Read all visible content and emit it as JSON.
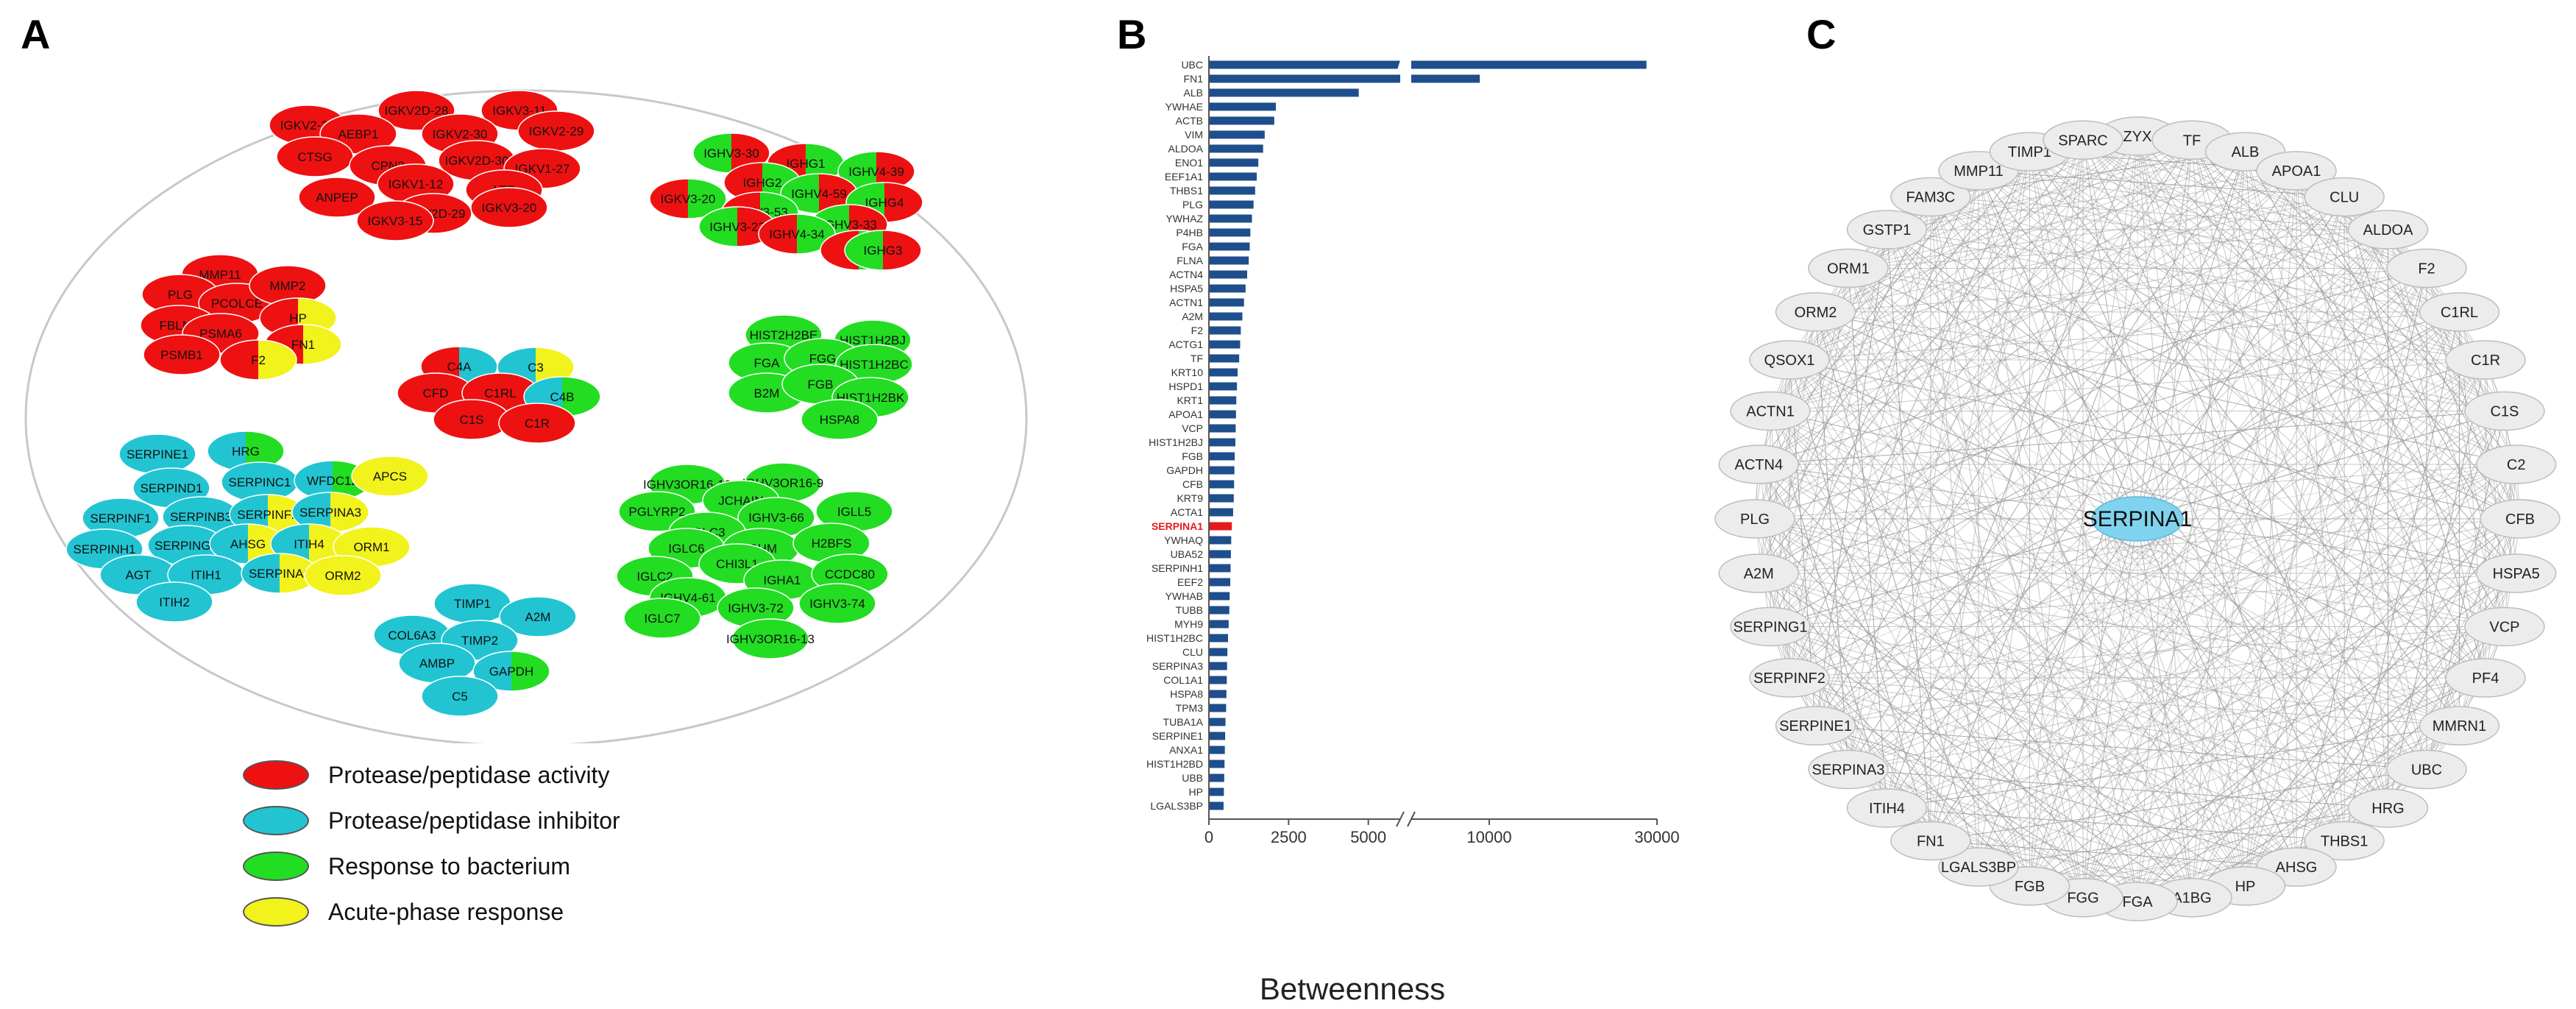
{
  "panel_letters": {
    "a": "A",
    "b": "B",
    "c": "C"
  },
  "colors": {
    "protease": "#ee1111",
    "inhibitor": "#22c4d2",
    "bacterium": "#22dd22",
    "acute": "#f2f21c",
    "bar": "#1e4e8c",
    "highlight": "#e41a1c",
    "node_gray": "#ececec",
    "edge_gray": "#9a9a9a",
    "center_node": "#7fd3ef"
  },
  "legend": [
    {
      "label": "Protease/peptidase activity",
      "color_key": "protease"
    },
    {
      "label": "Protease/peptidase inhibitor",
      "color_key": "inhibitor"
    },
    {
      "label": "Response to bacterium",
      "color_key": "bacterium"
    },
    {
      "label": "Acute-phase response",
      "color_key": "acute"
    }
  ],
  "network_a": {
    "clusters": [
      {
        "nodes": [
          {
            "label": "IGKV2-28",
            "colors": [
              "protease"
            ]
          },
          {
            "label": "IGKV2D-28",
            "colors": [
              "protease"
            ]
          },
          {
            "label": "IGKV3-11",
            "colors": [
              "protease"
            ]
          },
          {
            "label": "AEBP1",
            "colors": [
              "protease"
            ]
          },
          {
            "label": "IGKV2-30",
            "colors": [
              "protease"
            ]
          },
          {
            "label": "IGKV2-29",
            "colors": [
              "protease"
            ]
          },
          {
            "label": "CTSG",
            "colors": [
              "protease"
            ]
          },
          {
            "label": "CPN2",
            "colors": [
              "protease"
            ]
          },
          {
            "label": "IGKV2D-30",
            "colors": [
              "protease"
            ]
          },
          {
            "label": "IGKV1-27",
            "colors": [
              "protease"
            ]
          },
          {
            "label": "IGKV1-12",
            "colors": [
              "protease"
            ]
          },
          {
            "label": "LTF",
            "colors": [
              "protease"
            ]
          },
          {
            "label": "ANPEP",
            "colors": [
              "protease"
            ]
          },
          {
            "label": "IGKV2D-29",
            "colors": [
              "protease"
            ]
          },
          {
            "label": "IGKV3-20",
            "colors": [
              "protease"
            ]
          },
          {
            "label": "IGKV3-15",
            "colors": [
              "protease"
            ]
          }
        ]
      },
      {
        "nodes": [
          {
            "label": "IGHV3-30",
            "colors": [
              "bacterium",
              "protease"
            ]
          },
          {
            "label": "IGHG1",
            "colors": [
              "protease",
              "bacterium"
            ]
          },
          {
            "label": "IGHV4-39",
            "colors": [
              "bacterium",
              "protease"
            ]
          },
          {
            "label": "IGHG2",
            "colors": [
              "protease",
              "bacterium"
            ]
          },
          {
            "label": "IGKV3-20",
            "colors": [
              "protease",
              "bacterium"
            ]
          },
          {
            "label": "IGHV4-59",
            "colors": [
              "bacterium",
              "protease"
            ]
          },
          {
            "label": "IGHG4",
            "colors": [
              "bacterium",
              "protease"
            ]
          },
          {
            "label": "IGHV3-53",
            "colors": [
              "protease",
              "bacterium"
            ]
          },
          {
            "label": "IGHV3-33",
            "colors": [
              "bacterium",
              "protease"
            ]
          },
          {
            "label": "IGHV3-23",
            "colors": [
              "bacterium",
              "protease"
            ]
          },
          {
            "label": "IGHV4-34",
            "colors": [
              "protease",
              "bacterium"
            ]
          },
          {
            "label": "IGKC",
            "colors": [
              "protease",
              "bacterium"
            ]
          },
          {
            "label": "IGHG3",
            "colors": [
              "bacterium",
              "protease"
            ]
          }
        ]
      },
      {
        "nodes": [
          {
            "label": "MMP11",
            "colors": [
              "protease"
            ]
          },
          {
            "label": "PLG",
            "colors": [
              "protease"
            ]
          },
          {
            "label": "PCOLCE",
            "colors": [
              "protease"
            ]
          },
          {
            "label": "MMP2",
            "colors": [
              "protease"
            ]
          },
          {
            "label": "HP",
            "colors": [
              "protease",
              "acute"
            ]
          },
          {
            "label": "FBLN1",
            "colors": [
              "protease"
            ]
          },
          {
            "label": "PSMA6",
            "colors": [
              "protease"
            ]
          },
          {
            "label": "FN1",
            "colors": [
              "protease",
              "acute"
            ]
          },
          {
            "label": "PSMB1",
            "colors": [
              "protease"
            ]
          },
          {
            "label": "F2",
            "colors": [
              "protease",
              "acute"
            ]
          }
        ]
      },
      {
        "nodes": [
          {
            "label": "C4A",
            "colors": [
              "protease",
              "inhibitor"
            ]
          },
          {
            "label": "C3",
            "colors": [
              "inhibitor",
              "acute"
            ]
          },
          {
            "label": "CFD",
            "colors": [
              "protease"
            ]
          },
          {
            "label": "C1RL",
            "colors": [
              "protease"
            ]
          },
          {
            "label": "C4B",
            "colors": [
              "inhibitor",
              "bacterium"
            ]
          },
          {
            "label": "C1S",
            "colors": [
              "protease"
            ]
          },
          {
            "label": "C1R",
            "colors": [
              "protease"
            ]
          }
        ]
      },
      {
        "nodes": [
          {
            "label": "HIST2H2BE",
            "colors": [
              "bacterium"
            ]
          },
          {
            "label": "HIST1H2BJ",
            "colors": [
              "bacterium"
            ]
          },
          {
            "label": "FGA",
            "colors": [
              "bacterium"
            ]
          },
          {
            "label": "FGG",
            "colors": [
              "bacterium"
            ]
          },
          {
            "label": "HIST1H2BC",
            "colors": [
              "bacterium"
            ]
          },
          {
            "label": "B2M",
            "colors": [
              "bacterium"
            ]
          },
          {
            "label": "FGB",
            "colors": [
              "bacterium"
            ]
          },
          {
            "label": "HIST1H2BK",
            "colors": [
              "bacterium"
            ]
          },
          {
            "label": "HSPA8",
            "colors": [
              "bacterium"
            ]
          }
        ]
      },
      {
        "nodes": [
          {
            "label": "SERPINE1",
            "colors": [
              "inhibitor"
            ]
          },
          {
            "label": "HRG",
            "colors": [
              "inhibitor",
              "bacterium"
            ]
          },
          {
            "label": "SERPIND1",
            "colors": [
              "inhibitor"
            ]
          },
          {
            "label": "SERPINC1",
            "colors": [
              "inhibitor"
            ]
          },
          {
            "label": "WFDC12",
            "colors": [
              "inhibitor",
              "bacterium"
            ]
          },
          {
            "label": "APCS",
            "colors": [
              "acute"
            ]
          },
          {
            "label": "SERPINF1",
            "colors": [
              "inhibitor"
            ]
          },
          {
            "label": "SERPINB3",
            "colors": [
              "inhibitor"
            ]
          },
          {
            "label": "SERPINF2",
            "colors": [
              "inhibitor",
              "acute"
            ]
          },
          {
            "label": "SERPINA3",
            "colors": [
              "inhibitor",
              "acute"
            ]
          },
          {
            "label": "SERPINH1",
            "colors": [
              "inhibitor"
            ]
          },
          {
            "label": "SERPING1",
            "colors": [
              "inhibitor"
            ]
          },
          {
            "label": "AHSG",
            "colors": [
              "inhibitor",
              "acute"
            ]
          },
          {
            "label": "ITIH4",
            "colors": [
              "inhibitor",
              "acute"
            ]
          },
          {
            "label": "ORM1",
            "colors": [
              "acute"
            ]
          },
          {
            "label": "AGT",
            "colors": [
              "inhibitor"
            ]
          },
          {
            "label": "ITIH1",
            "colors": [
              "inhibitor"
            ]
          },
          {
            "label": "SERPINA1",
            "colors": [
              "inhibitor",
              "acute"
            ]
          },
          {
            "label": "ORM2",
            "colors": [
              "acute"
            ]
          },
          {
            "label": "ITIH2",
            "colors": [
              "inhibitor"
            ]
          }
        ]
      },
      {
        "nodes": [
          {
            "label": "IGHV3OR16-12",
            "colors": [
              "bacterium"
            ]
          },
          {
            "label": "IGHV3OR16-9",
            "colors": [
              "bacterium"
            ]
          },
          {
            "label": "JCHAIN",
            "colors": [
              "bacterium"
            ]
          },
          {
            "label": "PGLYRP2",
            "colors": [
              "bacterium"
            ]
          },
          {
            "label": "IGHV3-66",
            "colors": [
              "bacterium"
            ]
          },
          {
            "label": "IGLL5",
            "colors": [
              "bacterium"
            ]
          },
          {
            "label": "IGLC3",
            "colors": [
              "bacterium"
            ]
          },
          {
            "label": "IGLC6",
            "colors": [
              "bacterium"
            ]
          },
          {
            "label": "IGHM",
            "colors": [
              "bacterium"
            ]
          },
          {
            "label": "H2BFS",
            "colors": [
              "bacterium"
            ]
          },
          {
            "label": "CHI3L1",
            "colors": [
              "bacterium"
            ]
          },
          {
            "label": "IGLC2",
            "colors": [
              "bacterium"
            ]
          },
          {
            "label": "IGHA1",
            "colors": [
              "bacterium"
            ]
          },
          {
            "label": "CCDC80",
            "colors": [
              "bacterium"
            ]
          },
          {
            "label": "IGHV4-61",
            "colors": [
              "bacterium"
            ]
          },
          {
            "label": "IGHV3-74",
            "colors": [
              "bacterium"
            ]
          },
          {
            "label": "IGLC7",
            "colors": [
              "bacterium"
            ]
          },
          {
            "label": "IGHV3-72",
            "colors": [
              "bacterium"
            ]
          },
          {
            "label": "IGHV3OR16-13",
            "colors": [
              "bacterium"
            ]
          }
        ]
      },
      {
        "nodes": [
          {
            "label": "TIMP1",
            "colors": [
              "inhibitor"
            ]
          },
          {
            "label": "A2M",
            "colors": [
              "inhibitor"
            ]
          },
          {
            "label": "COL6A3",
            "colors": [
              "inhibitor"
            ]
          },
          {
            "label": "TIMP2",
            "colors": [
              "inhibitor"
            ]
          },
          {
            "label": "AMBP",
            "colors": [
              "inhibitor"
            ]
          },
          {
            "label": "GAPDH",
            "colors": [
              "inhibitor",
              "bacterium"
            ]
          },
          {
            "label": "C5",
            "colors": [
              "inhibitor"
            ]
          }
        ]
      }
    ]
  },
  "chart_data": {
    "type": "bar",
    "orientation": "horizontal",
    "xlabel": "Betweenness",
    "ylabel": "",
    "axis_break": [
      5800,
      6200
    ],
    "xticks": [
      0,
      2500,
      5000,
      10000,
      30000
    ],
    "xlim_segments": [
      [
        0,
        6000
      ],
      [
        6000,
        30000
      ]
    ],
    "highlighted": "SERPINA1",
    "categories": [
      "UBC",
      "FN1",
      "ALB",
      "YWHAE",
      "ACTB",
      "VIM",
      "ALDOA",
      "ENO1",
      "EEF1A1",
      "THBS1",
      "PLG",
      "YWHAZ",
      "P4HB",
      "FGA",
      "FLNA",
      "ACTN4",
      "HSPA5",
      "ACTN1",
      "A2M",
      "F2",
      "ACTG1",
      "TF",
      "KRT10",
      "HSPD1",
      "KRT1",
      "APOA1",
      "VCP",
      "HIST1H2BJ",
      "FGB",
      "GAPDH",
      "CFB",
      "KRT9",
      "ACTA1",
      "SERPINA1",
      "YWHAQ",
      "UBA52",
      "SERPINH1",
      "EEF2",
      "YWHAB",
      "TUBB",
      "MYH9",
      "HIST1H2BC",
      "CLU",
      "SERPINA3",
      "COL1A1",
      "HSPA8",
      "TPM3",
      "TUBA1A",
      "SERPINE1",
      "ANXA1",
      "HIST1H2BD",
      "UBB",
      "HP",
      "LGALS3BP"
    ],
    "values": [
      28000,
      9400,
      4700,
      2100,
      2050,
      1750,
      1700,
      1550,
      1500,
      1450,
      1400,
      1350,
      1300,
      1280,
      1250,
      1200,
      1150,
      1100,
      1050,
      1000,
      980,
      950,
      900,
      880,
      860,
      850,
      840,
      830,
      810,
      800,
      790,
      780,
      760,
      720,
      700,
      690,
      680,
      670,
      650,
      640,
      620,
      600,
      580,
      570,
      560,
      550,
      540,
      520,
      510,
      500,
      490,
      480,
      470,
      460
    ]
  },
  "network_c": {
    "center": "SERPINA1",
    "ring": [
      "ZYX",
      "TF",
      "ALB",
      "APOA1",
      "CLU",
      "ALDOA",
      "F2",
      "C1RL",
      "C1R",
      "C1S",
      "C2",
      "CFB",
      "HSPA5",
      "VCP",
      "PF4",
      "MMRN1",
      "UBC",
      "HRG",
      "THBS1",
      "AHSG",
      "HP",
      "A1BG",
      "FGA",
      "FGG",
      "FGB",
      "LGALS3BP",
      "FN1",
      "ITIH4",
      "SERPINA3",
      "SERPINE1",
      "SERPINF2",
      "SERPING1",
      "A2M",
      "PLG",
      "ACTN4",
      "ACTN1",
      "QSOX1",
      "ORM2",
      "ORM1",
      "GSTP1",
      "FAM3C",
      "MMP11",
      "TIMP1",
      "SPARC"
    ]
  }
}
